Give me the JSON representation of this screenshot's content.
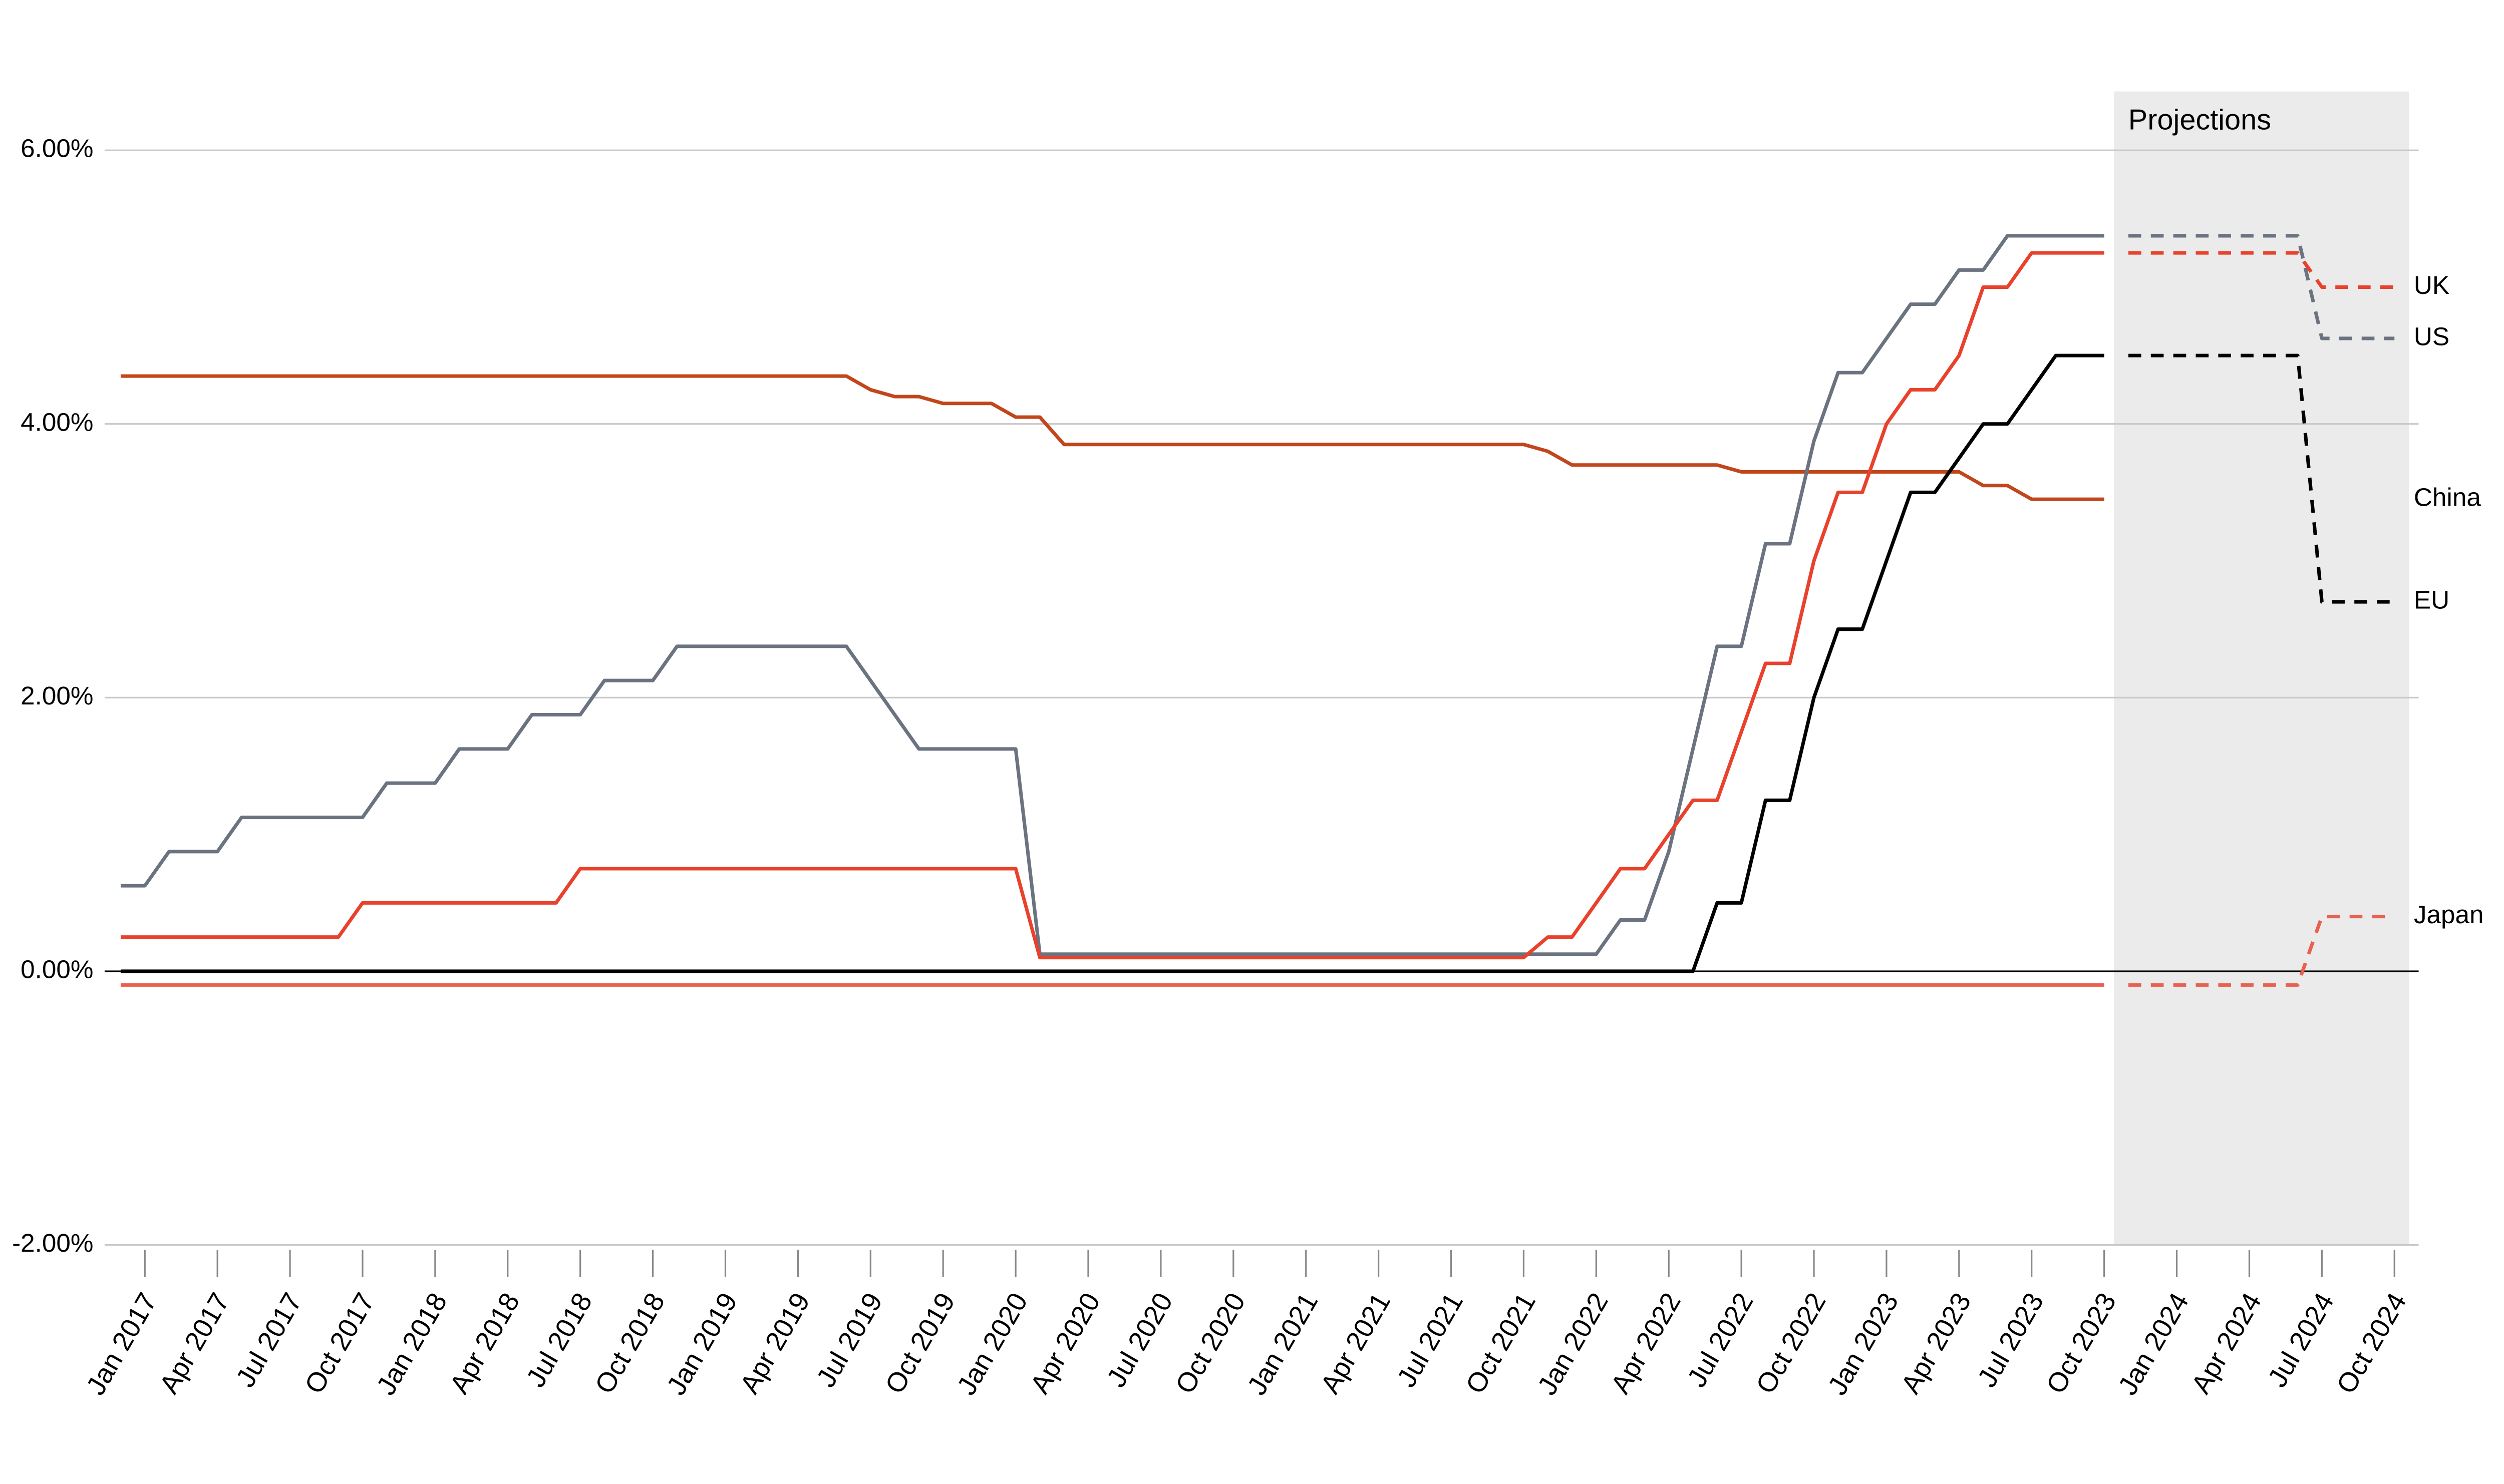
{
  "chart_data": {
    "type": "line",
    "annotation": "Projections",
    "xlim": [
      "2016-12",
      "2024-11"
    ],
    "xticks": [
      {
        "value": "2017-01",
        "label": "Jan 2017"
      },
      {
        "value": "2017-04",
        "label": "Apr 2017"
      },
      {
        "value": "2017-07",
        "label": "Jul 2017"
      },
      {
        "value": "2017-10",
        "label": "Oct 2017"
      },
      {
        "value": "2018-01",
        "label": "Jan 2018"
      },
      {
        "value": "2018-04",
        "label": "Apr 2018"
      },
      {
        "value": "2018-07",
        "label": "Jul 2018"
      },
      {
        "value": "2018-10",
        "label": "Oct 2018"
      },
      {
        "value": "2019-01",
        "label": "Jan 2019"
      },
      {
        "value": "2019-04",
        "label": "Apr 2019"
      },
      {
        "value": "2019-07",
        "label": "Jul 2019"
      },
      {
        "value": "2019-10",
        "label": "Oct 2019"
      },
      {
        "value": "2020-01",
        "label": "Jan 2020"
      },
      {
        "value": "2020-04",
        "label": "Apr 2020"
      },
      {
        "value": "2020-07",
        "label": "Jul 2020"
      },
      {
        "value": "2020-10",
        "label": "Oct 2020"
      },
      {
        "value": "2021-01",
        "label": "Jan 2021"
      },
      {
        "value": "2021-04",
        "label": "Apr 2021"
      },
      {
        "value": "2021-07",
        "label": "Jul 2021"
      },
      {
        "value": "2021-10",
        "label": "Oct 2021"
      },
      {
        "value": "2022-01",
        "label": "Jan 2022"
      },
      {
        "value": "2022-04",
        "label": "Apr 2022"
      },
      {
        "value": "2022-07",
        "label": "Jul 2022"
      },
      {
        "value": "2022-10",
        "label": "Oct 2022"
      },
      {
        "value": "2023-01",
        "label": "Jan 2023"
      },
      {
        "value": "2023-04",
        "label": "Apr 2023"
      },
      {
        "value": "2023-07",
        "label": "Jul 2023"
      },
      {
        "value": "2023-10",
        "label": "Oct 2023"
      },
      {
        "value": "2024-01",
        "label": "Jan 2024"
      },
      {
        "value": "2024-04",
        "label": "Apr 2024"
      },
      {
        "value": "2024-07",
        "label": "Jul 2024"
      },
      {
        "value": "2024-10",
        "label": "Oct 2024"
      }
    ],
    "ylim": [
      -2,
      6.43
    ],
    "yticks": [
      {
        "value": -2,
        "label": "-2.00%"
      },
      {
        "value": 0,
        "label": "0.00%"
      },
      {
        "value": 2,
        "label": "2.00%"
      },
      {
        "value": 4,
        "label": "4.00%"
      },
      {
        "value": 6,
        "label": "6.00%"
      }
    ],
    "grid": true,
    "series": [
      {
        "name": "China",
        "color": "#c2461b",
        "x": [
          "2016-12",
          "2019-06",
          "2019-07",
          "2019-08",
          "2019-09",
          "2019-10",
          "2019-12",
          "2020-01",
          "2020-02",
          "2020-03",
          "2021-10",
          "2021-11",
          "2021-12",
          "2022-06",
          "2022-07",
          "2023-04",
          "2023-05",
          "2023-06",
          "2023-07",
          "2023-10"
        ],
        "values": [
          4.35,
          4.35,
          4.25,
          4.2,
          4.2,
          4.15,
          4.15,
          4.05,
          4.05,
          3.85,
          3.85,
          3.8,
          3.7,
          3.7,
          3.65,
          3.65,
          3.55,
          3.55,
          3.45,
          3.45
        ]
      },
      {
        "name": "Japan",
        "color": "#e8604f",
        "x": [
          "2016-12",
          "2023-10"
        ],
        "values": [
          -0.1,
          -0.1
        ],
        "projection": {
          "x": [
            "2023-11",
            "2024-06",
            "2024-07",
            "2024-10"
          ],
          "values": [
            -0.1,
            -0.1,
            0.4,
            0.4
          ]
        }
      },
      {
        "name": "US",
        "color": "#6b7280",
        "x": [
          "2016-12",
          "2017-01",
          "2017-02",
          "2017-04",
          "2017-05",
          "2017-10",
          "2017-11",
          "2018-01",
          "2018-02",
          "2018-04",
          "2018-05",
          "2018-07",
          "2018-08",
          "2018-10",
          "2018-11",
          "2019-06",
          "2019-09",
          "2020-01",
          "2020-02",
          "2022-01",
          "2022-02",
          "2022-03",
          "2022-04",
          "2022-06",
          "2022-07",
          "2022-08",
          "2022-09",
          "2022-10",
          "2022-11",
          "2022-12",
          "2023-02",
          "2023-03",
          "2023-04",
          "2023-05",
          "2023-06",
          "2023-10"
        ],
        "values": [
          0.625,
          0.625,
          0.875,
          0.875,
          1.125,
          1.125,
          1.375,
          1.375,
          1.625,
          1.625,
          1.875,
          1.875,
          2.125,
          2.125,
          2.375,
          2.375,
          1.625,
          1.625,
          0.125,
          0.125,
          0.375,
          0.375,
          0.875,
          2.375,
          2.375,
          3.125,
          3.125,
          3.875,
          4.375,
          4.375,
          4.875,
          4.875,
          5.125,
          5.125,
          5.375,
          5.375
        ],
        "projection": {
          "x": [
            "2023-11",
            "2024-06",
            "2024-07",
            "2024-10"
          ],
          "values": [
            5.375,
            5.375,
            4.625,
            4.625
          ]
        }
      },
      {
        "name": "UK",
        "color": "#e8412c",
        "x": [
          "2016-12",
          "2017-09",
          "2017-10",
          "2018-06",
          "2018-07",
          "2020-01",
          "2020-02",
          "2021-10",
          "2021-11",
          "2021-12",
          "2022-02",
          "2022-03",
          "2022-05",
          "2022-06",
          "2022-08",
          "2022-09",
          "2022-10",
          "2022-11",
          "2022-12",
          "2023-01",
          "2023-02",
          "2023-03",
          "2023-04",
          "2023-05",
          "2023-06",
          "2023-07",
          "2023-10"
        ],
        "values": [
          0.25,
          0.25,
          0.5,
          0.5,
          0.75,
          0.75,
          0.1,
          0.1,
          0.25,
          0.25,
          0.75,
          0.75,
          1.25,
          1.25,
          2.25,
          2.25,
          3.0,
          3.5,
          3.5,
          4.0,
          4.25,
          4.25,
          4.5,
          5.0,
          5.0,
          5.25,
          5.25
        ],
        "projection": {
          "x": [
            "2023-11",
            "2024-06",
            "2024-07",
            "2024-10"
          ],
          "values": [
            5.25,
            5.25,
            5.0,
            5.0
          ]
        }
      },
      {
        "name": "EU",
        "color": "#000000",
        "x": [
          "2016-12",
          "2022-05",
          "2022-06",
          "2022-07",
          "2022-08",
          "2022-09",
          "2022-10",
          "2022-11",
          "2022-12",
          "2023-02",
          "2023-03",
          "2023-05",
          "2023-06",
          "2023-08",
          "2023-10"
        ],
        "values": [
          0,
          0,
          0.5,
          0.5,
          1.25,
          1.25,
          2.0,
          2.5,
          2.5,
          3.5,
          3.5,
          4.0,
          4.0,
          4.5,
          4.5
        ],
        "projection": {
          "x": [
            "2023-11",
            "2024-06",
            "2024-07",
            "2024-10"
          ],
          "values": [
            4.5,
            4.5,
            2.7,
            2.7
          ]
        }
      }
    ]
  }
}
